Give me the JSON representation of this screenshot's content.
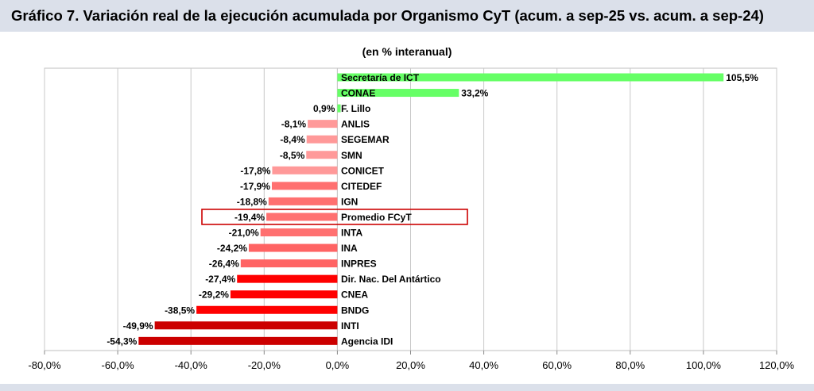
{
  "title": "Gráfico 7. Variación real de la ejecución acumulada por Organismo CyT (acum. a sep-25 vs. acum. a sep-24)",
  "chart_data": {
    "type": "bar",
    "orientation": "horizontal",
    "subtitle": "(en % interanual)",
    "xlim": [
      -80,
      120
    ],
    "xticks": [
      -80,
      -60,
      -40,
      -20,
      0,
      20,
      40,
      60,
      80,
      100,
      120
    ],
    "xtick_labels": [
      "-80,0%",
      "-60,0%",
      "-40,0%",
      "-20,0%",
      "0,0%",
      "20,0%",
      "40,0%",
      "60,0%",
      "80,0%",
      "100,0%",
      "120,0%"
    ],
    "grid": true,
    "highlight": "Promedio FCyT",
    "bars": [
      {
        "label": "Secretaría de ICT",
        "value": 105.5,
        "value_label": "105,5%",
        "color": "#66ff66"
      },
      {
        "label": "CONAE",
        "value": 33.2,
        "value_label": "33,2%",
        "color": "#66ff66"
      },
      {
        "label": "F. Lillo",
        "value": 0.9,
        "value_label": "0,9%",
        "color": "#66ff66"
      },
      {
        "label": "ANLIS",
        "value": -8.1,
        "value_label": "-8,1%",
        "color": "#ff9999"
      },
      {
        "label": "SEGEMAR",
        "value": -8.4,
        "value_label": "-8,4%",
        "color": "#ff9999"
      },
      {
        "label": "SMN",
        "value": -8.5,
        "value_label": "-8,5%",
        "color": "#ff9999"
      },
      {
        "label": "CONICET",
        "value": -17.8,
        "value_label": "-17,8%",
        "color": "#ff9999"
      },
      {
        "label": "CITEDEF",
        "value": -17.9,
        "value_label": "-17,9%",
        "color": "#ff7070"
      },
      {
        "label": "IGN",
        "value": -18.8,
        "value_label": "-18,8%",
        "color": "#ff7070"
      },
      {
        "label": "Promedio FCyT",
        "value": -19.4,
        "value_label": "-19,4%",
        "color": "#ff7070"
      },
      {
        "label": "INTA",
        "value": -21.0,
        "value_label": "-21,0%",
        "color": "#ff7070"
      },
      {
        "label": "INA",
        "value": -24.2,
        "value_label": "-24,2%",
        "color": "#ff6464"
      },
      {
        "label": "INPRES",
        "value": -26.4,
        "value_label": "-26,4%",
        "color": "#ff6464"
      },
      {
        "label": "Dir. Nac. Del Antártico",
        "value": -27.4,
        "value_label": "-27,4%",
        "color": "#ff0000"
      },
      {
        "label": "CNEA",
        "value": -29.2,
        "value_label": "-29,2%",
        "color": "#ff0000"
      },
      {
        "label": "BNDG",
        "value": -38.5,
        "value_label": "-38,5%",
        "color": "#ff0000"
      },
      {
        "label": "INTI",
        "value": -49.9,
        "value_label": "-49,9%",
        "color": "#cc0000"
      },
      {
        "label": "Agencia IDI",
        "value": -54.3,
        "value_label": "-54,3%",
        "color": "#cc0000"
      }
    ]
  }
}
